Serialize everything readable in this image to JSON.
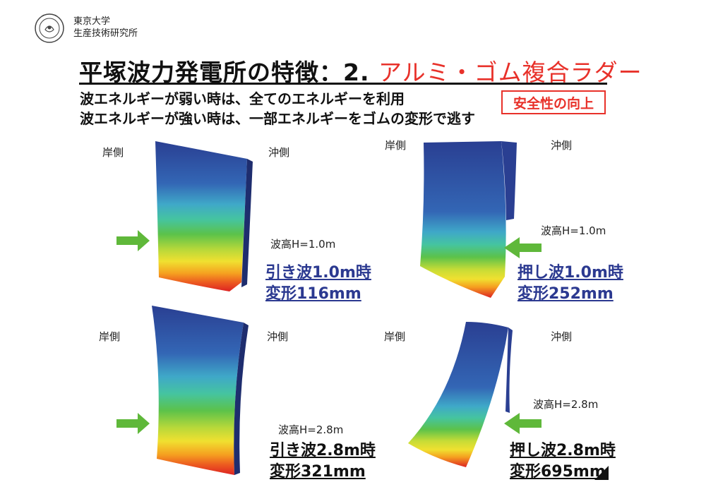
{
  "header": {
    "org_line1": "東京大学",
    "org_line2": "生産技術研究所",
    "title_main": "平塚波力発電所の特徴：2.",
    "title_highlight": "アルミ・ゴム複合ラダー",
    "sub1": "波エネルギーが弱い時は、全てのエネルギーを利用",
    "sub2": "波エネルギーが強い時は、一部エネルギーをゴムの変形で逃す",
    "badge": "安全性の向上"
  },
  "labels": {
    "shore": "岸側",
    "offshore": "沖側"
  },
  "panels": [
    {
      "wave": "波高H=1.0m",
      "cap1": "引き波1.0m時",
      "cap2": "変形116mm"
    },
    {
      "wave": "波高H=1.0m",
      "cap1": "押し波1.0m時",
      "cap2": "変形252mm"
    },
    {
      "wave": "波高H=2.8m",
      "cap1": "引き波2.8m時",
      "cap2": "変形321mm"
    },
    {
      "wave": "波高H=2.8m",
      "cap1": "押し波2.8m時",
      "cap2": "変形695mm"
    }
  ],
  "colors": {
    "accent_red": "#e8312a",
    "caption_blue": "#2b3990",
    "arrow_green": "#5fb83a"
  }
}
